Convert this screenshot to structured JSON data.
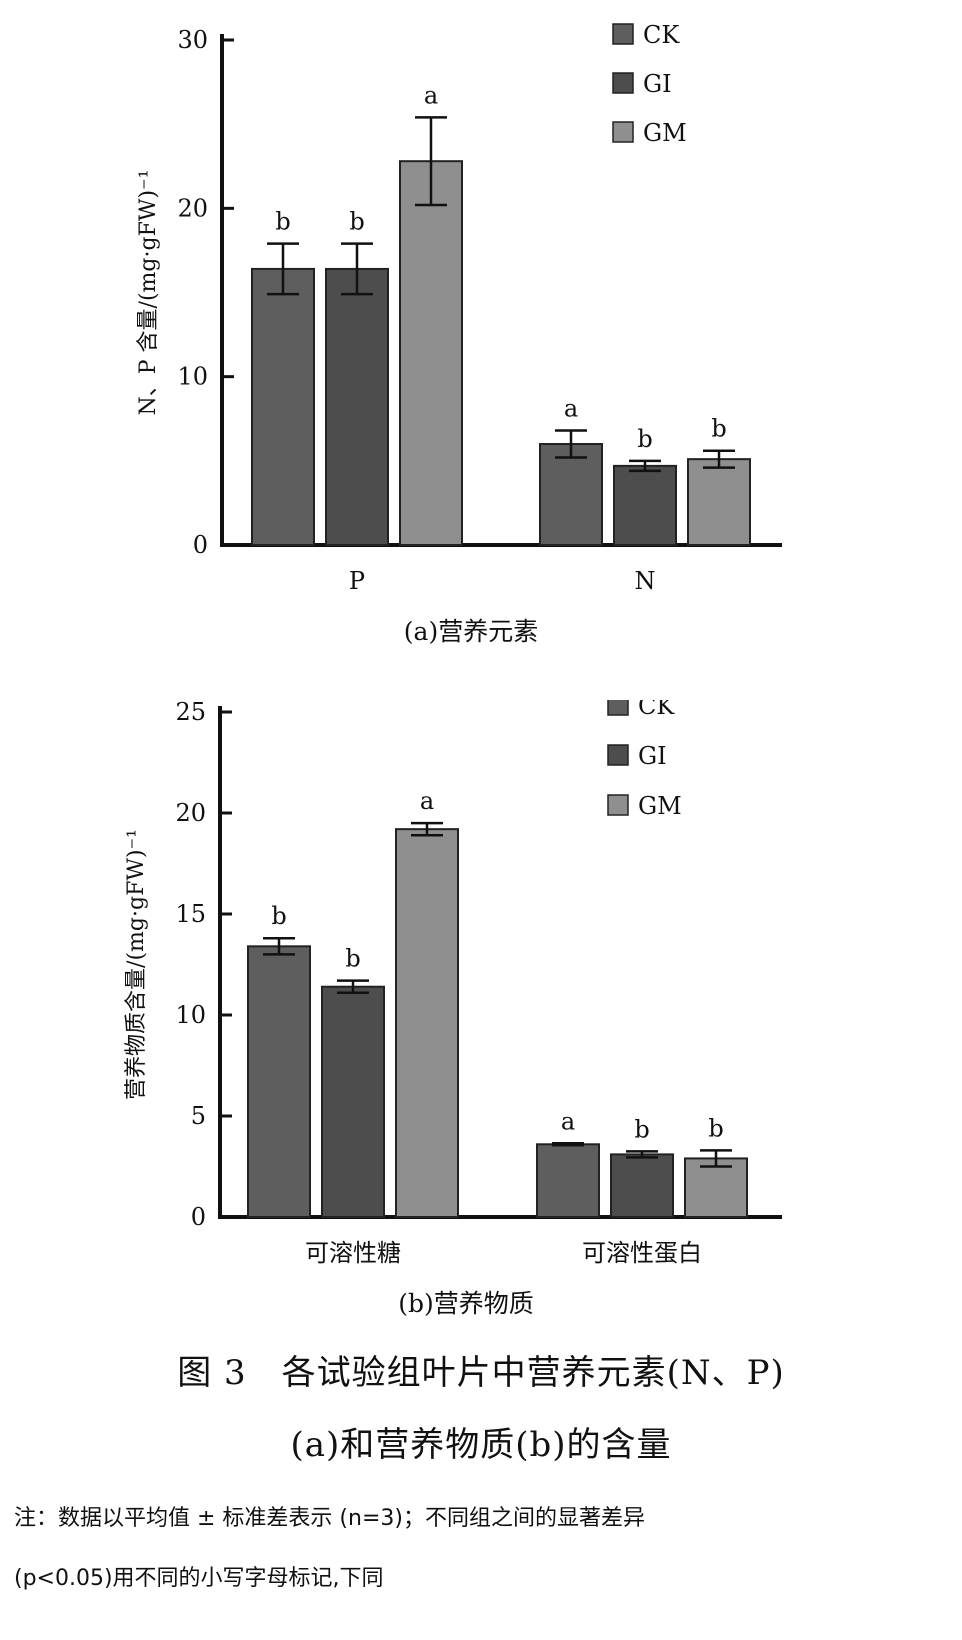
{
  "chart_data": [
    {
      "type": "bar",
      "ylabel": "N、P 含量/(mg·gFW)⁻¹",
      "ylim": [
        0,
        30
      ],
      "yticks": [
        0,
        10,
        20,
        30
      ],
      "categories": [
        "P",
        "N"
      ],
      "series": [
        {
          "name": "CK",
          "color": "#5e5e5e",
          "values": [
            16.4,
            6.0
          ],
          "errors": [
            1.5,
            0.8
          ],
          "letters": [
            "b",
            "a"
          ]
        },
        {
          "name": "GI",
          "color": "#4d4d4d",
          "values": [
            16.4,
            4.7
          ],
          "errors": [
            1.5,
            0.3
          ],
          "letters": [
            "b",
            "b"
          ]
        },
        {
          "name": "GM",
          "color": "#8f8f8f",
          "values": [
            22.8,
            5.1
          ],
          "errors": [
            2.6,
            0.5
          ],
          "letters": [
            "a",
            "b"
          ]
        }
      ],
      "caption": "(a)营养元素"
    },
    {
      "type": "bar",
      "ylabel": "营养物质含量/(mg·gFW)⁻¹",
      "ylim": [
        0,
        25
      ],
      "yticks": [
        0,
        5,
        10,
        15,
        20,
        25
      ],
      "categories": [
        "可溶性糖",
        "可溶性蛋白"
      ],
      "series": [
        {
          "name": "CK",
          "color": "#5e5e5e",
          "values": [
            13.4,
            3.6
          ],
          "errors": [
            0.4,
            0.05
          ],
          "letters": [
            "b",
            "a"
          ]
        },
        {
          "name": "GI",
          "color": "#4d4d4d",
          "values": [
            11.4,
            3.1
          ],
          "errors": [
            0.3,
            0.15
          ],
          "letters": [
            "b",
            "b"
          ]
        },
        {
          "name": "GM",
          "color": "#8f8f8f",
          "values": [
            19.2,
            2.9
          ],
          "errors": [
            0.3,
            0.4
          ],
          "letters": [
            "a",
            "b"
          ]
        }
      ],
      "caption": "(b)营养物质"
    }
  ],
  "figure": {
    "caption_line1": "图 3　各试验组叶片中营养元素(N、P)",
    "caption_line2": "(a)和营养物质(b)的含量",
    "note_line1": "注：数据以平均值 ± 标准差表示 (n=3)；不同组之间的显著差异",
    "note_line2": "(p<0.05)用不同的小写字母标记,下同"
  }
}
